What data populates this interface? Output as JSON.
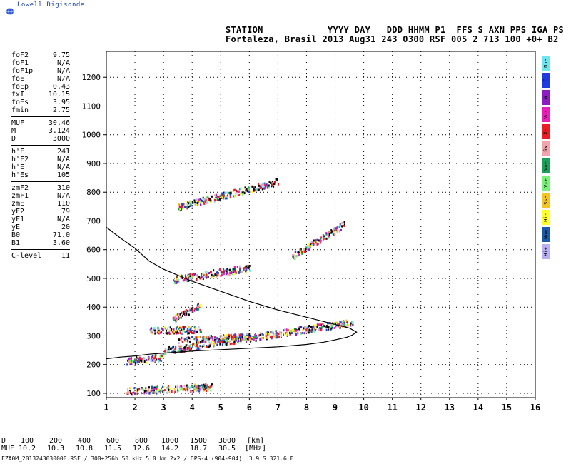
{
  "header": {
    "brand": "Lowell Digisonde",
    "station_row1": "STATION            YYYY DAY   DDD HHMM P1  FFS S AXN PPS IGA PS",
    "station_row2": "Fortaleza, Brasil 2013 Aug31 243 0300 RSF 005 2 713 100 +0+ B2"
  },
  "params": [
    {
      "name": "foF2",
      "value": "9.75"
    },
    {
      "name": "foF1",
      "value": "N/A"
    },
    {
      "name": "foF1p",
      "value": "N/A"
    },
    {
      "name": "foE",
      "value": "N/A"
    },
    {
      "name": "foEp",
      "value": "0.43"
    },
    {
      "name": "fxI",
      "value": "10.15"
    },
    {
      "name": "foEs",
      "value": "3.95"
    },
    {
      "name": "fmin",
      "value": "2.75"
    },
    {
      "sep": true
    },
    {
      "name": "MUF",
      "value": "30.46"
    },
    {
      "name": "M",
      "value": "3.124"
    },
    {
      "name": "D",
      "value": "3000"
    },
    {
      "sep": true
    },
    {
      "name": "h'F",
      "value": "241"
    },
    {
      "name": "h'F2",
      "value": "N/A"
    },
    {
      "name": "h'E",
      "value": "N/A"
    },
    {
      "name": "h'Es",
      "value": "105"
    },
    {
      "sep": true
    },
    {
      "name": "zmF2",
      "value": "310"
    },
    {
      "name": "zmF1",
      "value": "N/A"
    },
    {
      "name": "zmE",
      "value": "110"
    },
    {
      "name": "yF2",
      "value": "79"
    },
    {
      "name": "yF1",
      "value": "N/A"
    },
    {
      "name": "yE",
      "value": "20"
    },
    {
      "name": "B0",
      "value": "71.0"
    },
    {
      "name": "B1",
      "value": "3.60"
    },
    {
      "sep": true
    },
    {
      "name": "C-level",
      "value": "11"
    }
  ],
  "legend": [
    {
      "label": "Nne",
      "color": "#6fe6ee"
    },
    {
      "label": "E",
      "color": "#1f3be0"
    },
    {
      "label": "W",
      "color": "#8a1cc0"
    },
    {
      "label": "Vo-",
      "color": "#e81fb8"
    },
    {
      "label": "X-",
      "color": "#ec1c24"
    },
    {
      "label": "Sw",
      "color": "#f2a4ac"
    },
    {
      "label": "Vo+",
      "color": "#1aa05a"
    },
    {
      "label": "Vx+",
      "color": "#7af07a"
    },
    {
      "label": "Sse",
      "color": "#f4c424"
    },
    {
      "label": "Hi-",
      "color": "#ffff2a"
    },
    {
      "label": "Nnw",
      "color": "#1a5aa8"
    },
    {
      "label": "Hi+",
      "color": "#b8b0f0"
    }
  ],
  "table": {
    "d_label": "D",
    "d_values": [
      "100",
      "200",
      "400",
      "600",
      "800",
      "1000",
      "1500",
      "3000"
    ],
    "d_unit": "[km]",
    "muf_label": "MUF",
    "muf_values": [
      "10.2",
      "10.3",
      "10.8",
      "11.5",
      "12.6",
      "14.2",
      "18.7",
      "30.5"
    ],
    "muf_unit": "[MHz]"
  },
  "footer": "FZA0M_2013243030000.RSF / 300+256h 50 kHz 5.0 km 2x2 / DPS-4 (904-904)  3.9 S 321.6 E",
  "chart_data": {
    "type": "scatter",
    "xlim": [
      1,
      16
    ],
    "ylim": [
      85,
      1290
    ],
    "x_ticks": [
      1,
      2,
      3,
      4,
      5,
      6,
      7,
      8,
      9,
      10,
      11,
      12,
      13,
      14,
      15,
      16
    ],
    "y_ticks": [
      100,
      200,
      300,
      400,
      500,
      600,
      700,
      800,
      900,
      1000,
      1100,
      1200
    ],
    "grid": true,
    "profile_curve": {
      "x": [
        1.0,
        1.5,
        2.0,
        2.5,
        3.0,
        4.0,
        5.0,
        6.0,
        7.0,
        8.0,
        8.6,
        9.0,
        9.4,
        9.6,
        9.75,
        9.5,
        9.0,
        8.0,
        7.0,
        6.0,
        5.0,
        4.0,
        3.0,
        2.5,
        2.0,
        1.5,
        1.0
      ],
      "y": [
        220,
        226,
        230,
        236,
        240,
        247,
        252,
        257,
        262,
        270,
        278,
        286,
        295,
        303,
        313,
        327,
        340,
        365,
        390,
        420,
        455,
        490,
        532,
        560,
        605,
        640,
        678
      ]
    },
    "echo_traces": [
      {
        "layer": "Es",
        "x": [
          1.7,
          4.7
        ],
        "y": [
          110,
          125
        ]
      },
      {
        "layer": "F-low",
        "x": [
          1.7,
          3.0
        ],
        "y": [
          215,
          228
        ]
      },
      {
        "layer": "F",
        "x": [
          3.0,
          9.6
        ],
        "y": [
          250,
          350
        ]
      },
      {
        "layer": "F-upper",
        "x": [
          3.5,
          6.0
        ],
        "y": [
          285,
          300
        ]
      },
      {
        "layer": "2Es-a",
        "x": [
          2.5,
          4.3
        ],
        "y": [
          320,
          325
        ]
      },
      {
        "layer": "2Es-b",
        "x": [
          3.3,
          4.3
        ],
        "y": [
          360,
          410
        ]
      },
      {
        "layer": "2F",
        "x": [
          3.3,
          6.0
        ],
        "y": [
          497,
          540
        ]
      },
      {
        "layer": "2F-hi",
        "x": [
          7.5,
          9.3
        ],
        "y": [
          580,
          690
        ]
      },
      {
        "layer": "3F",
        "x": [
          3.5,
          7.0
        ],
        "y": [
          750,
          840
        ]
      }
    ]
  }
}
